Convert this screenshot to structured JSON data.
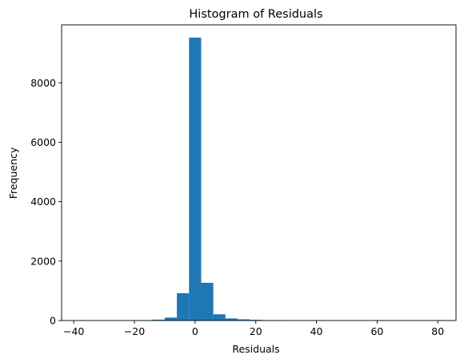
{
  "chart_data": {
    "type": "bar",
    "title": "Histogram of Residuals",
    "xlabel": "Residuals",
    "ylabel": "Frequency",
    "xlim": [
      -44,
      86
    ],
    "ylim": [
      0,
      9950
    ],
    "bin_width": 4,
    "bins": [
      {
        "start": -42,
        "end": -38,
        "count": 0
      },
      {
        "start": -38,
        "end": -34,
        "count": 0
      },
      {
        "start": -34,
        "end": -30,
        "count": 0
      },
      {
        "start": -30,
        "end": -26,
        "count": 0
      },
      {
        "start": -26,
        "end": -22,
        "count": 5
      },
      {
        "start": -22,
        "end": -18,
        "count": 10
      },
      {
        "start": -18,
        "end": -14,
        "count": 15
      },
      {
        "start": -14,
        "end": -10,
        "count": 30
      },
      {
        "start": -10,
        "end": -6,
        "count": 100
      },
      {
        "start": -6,
        "end": -2,
        "count": 920
      },
      {
        "start": -2,
        "end": 2,
        "count": 9520
      },
      {
        "start": 2,
        "end": 6,
        "count": 1270
      },
      {
        "start": 6,
        "end": 10,
        "count": 210
      },
      {
        "start": 10,
        "end": 14,
        "count": 70
      },
      {
        "start": 14,
        "end": 18,
        "count": 40
      },
      {
        "start": 18,
        "end": 22,
        "count": 25
      },
      {
        "start": 22,
        "end": 26,
        "count": 15
      },
      {
        "start": 26,
        "end": 30,
        "count": 10
      },
      {
        "start": 30,
        "end": 34,
        "count": 8
      },
      {
        "start": 34,
        "end": 38,
        "count": 5
      },
      {
        "start": 38,
        "end": 42,
        "count": 2
      },
      {
        "start": 42,
        "end": 46,
        "count": 1
      },
      {
        "start": 46,
        "end": 50,
        "count": 1
      },
      {
        "start": 50,
        "end": 54,
        "count": 0
      },
      {
        "start": 54,
        "end": 58,
        "count": 0
      },
      {
        "start": 58,
        "end": 62,
        "count": 0
      },
      {
        "start": 62,
        "end": 66,
        "count": 0
      },
      {
        "start": 66,
        "end": 70,
        "count": 0
      },
      {
        "start": 70,
        "end": 74,
        "count": 0
      },
      {
        "start": 74,
        "end": 78,
        "count": 0
      },
      {
        "start": 78,
        "end": 82,
        "count": 1
      }
    ],
    "xticks": [
      -40,
      -20,
      0,
      20,
      40,
      60,
      80
    ],
    "yticks": [
      0,
      2000,
      4000,
      6000,
      8000
    ],
    "grid": false,
    "bar_color": "#1f77b4"
  }
}
